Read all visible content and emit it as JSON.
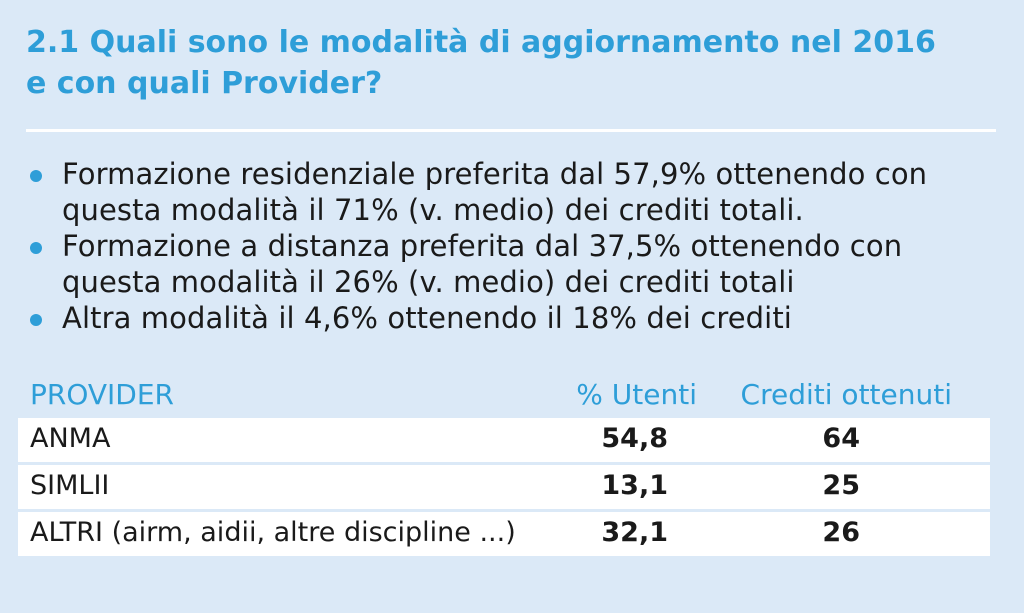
{
  "title": {
    "line1": "2.1 Quali sono le modalità di aggiornamento nel 2016",
    "line2": "e con quali Provider?"
  },
  "bullets": [
    {
      "line1": "Formazione residenziale preferita dal 57,9% ottenendo con",
      "line2": "questa modalità il 71% (v. medio) dei crediti totali."
    },
    {
      "line1": "Formazione a distanza preferita dal 37,5% ottenendo con",
      "line2": "questa modalità il 26% (v. medio) dei crediti totali"
    },
    {
      "line1": "Altra modalità il 4,6% ottenendo il 18% dei crediti",
      "line2": ""
    }
  ],
  "table": {
    "headers": {
      "provider": "PROVIDER",
      "users": "% Utenti",
      "credits": "Crediti ottenuti"
    },
    "rows": [
      {
        "provider": "ANMA",
        "users": "54,8",
        "credits": "64"
      },
      {
        "provider": "SIMLII",
        "users": "13,1",
        "credits": "25"
      },
      {
        "provider": "ALTRI (airm, aidii, altre discipline ...)",
        "users": "32,1",
        "credits": "26"
      }
    ]
  },
  "colors": {
    "background": "#dbe9f7",
    "accent": "#2e9ed8",
    "row_background": "#ffffff",
    "text": "#1a1a1a"
  }
}
